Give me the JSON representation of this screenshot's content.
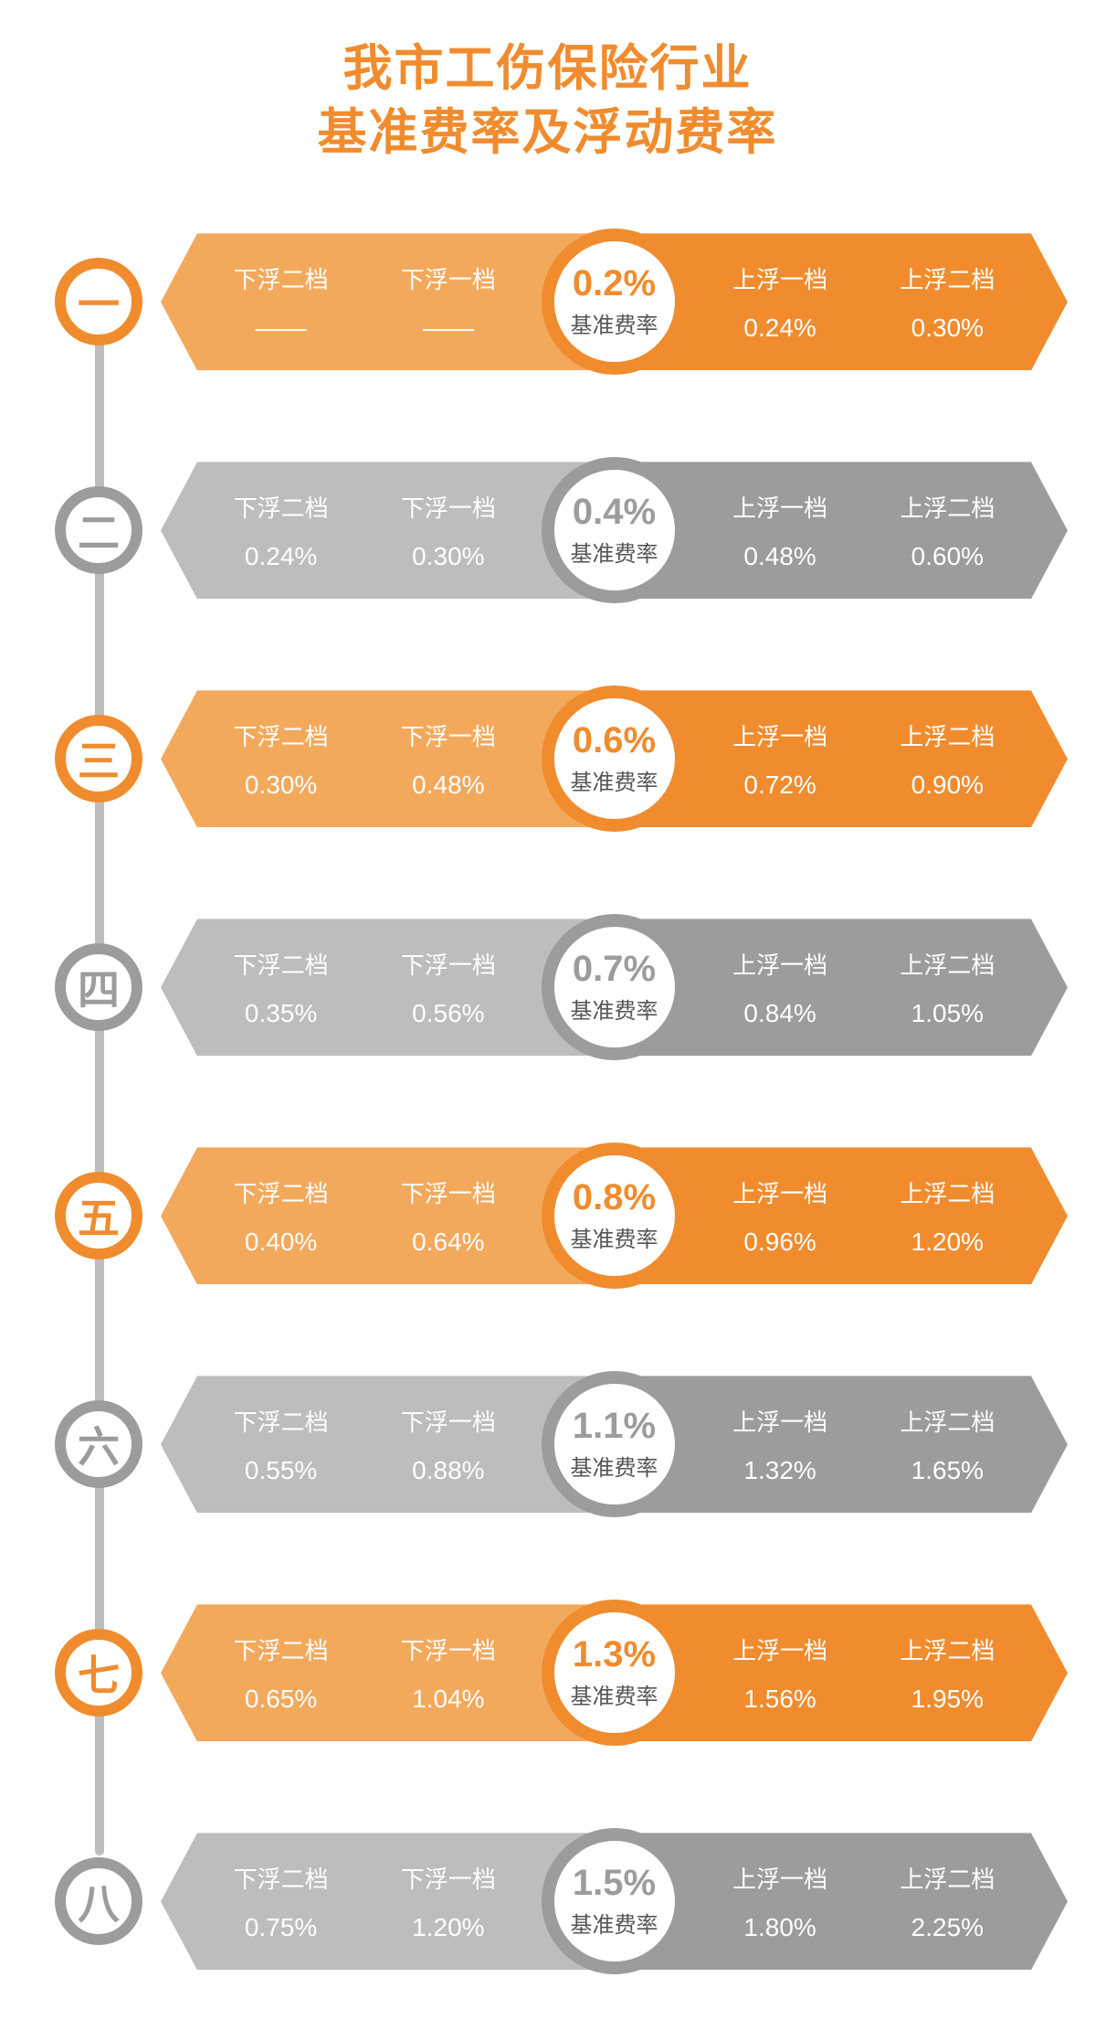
{
  "title_line1": "我市工伤保险行业",
  "title_line2": "基准费率及浮动费率",
  "title_color": "#f08c2e",
  "colors": {
    "orange_outer": "#f3a95c",
    "orange_inner": "#f08c2e",
    "gray_outer": "#bdbdbd",
    "gray_inner": "#9c9c9c",
    "connector": "#bdbdbd",
    "white": "#ffffff"
  },
  "labels": {
    "down2": "下浮二档",
    "down1": "下浮一档",
    "up1": "上浮一档",
    "up2": "上浮二档",
    "base": "基准费率"
  },
  "rows": [
    {
      "num": "一",
      "scheme": "orange",
      "base": "0.2%",
      "down2": "——",
      "down1": "——",
      "up1": "0.24%",
      "up2": "0.30%"
    },
    {
      "num": "二",
      "scheme": "gray",
      "base": "0.4%",
      "down2": "0.24%",
      "down1": "0.30%",
      "up1": "0.48%",
      "up2": "0.60%"
    },
    {
      "num": "三",
      "scheme": "orange",
      "base": "0.6%",
      "down2": "0.30%",
      "down1": "0.48%",
      "up1": "0.72%",
      "up2": "0.90%"
    },
    {
      "num": "四",
      "scheme": "gray",
      "base": "0.7%",
      "down2": "0.35%",
      "down1": "0.56%",
      "up1": "0.84%",
      "up2": "1.05%"
    },
    {
      "num": "五",
      "scheme": "orange",
      "base": "0.8%",
      "down2": "0.40%",
      "down1": "0.64%",
      "up1": "0.96%",
      "up2": "1.20%"
    },
    {
      "num": "六",
      "scheme": "gray",
      "base": "1.1%",
      "down2": "0.55%",
      "down1": "0.88%",
      "up1": "1.32%",
      "up2": "1.65%"
    },
    {
      "num": "七",
      "scheme": "orange",
      "base": "1.3%",
      "down2": "0.65%",
      "down1": "1.04%",
      "up1": "1.56%",
      "up2": "1.95%"
    },
    {
      "num": "八",
      "scheme": "gray",
      "base": "1.5%",
      "down2": "0.75%",
      "down1": "1.20%",
      "up1": "1.80%",
      "up2": "2.25%"
    }
  ]
}
